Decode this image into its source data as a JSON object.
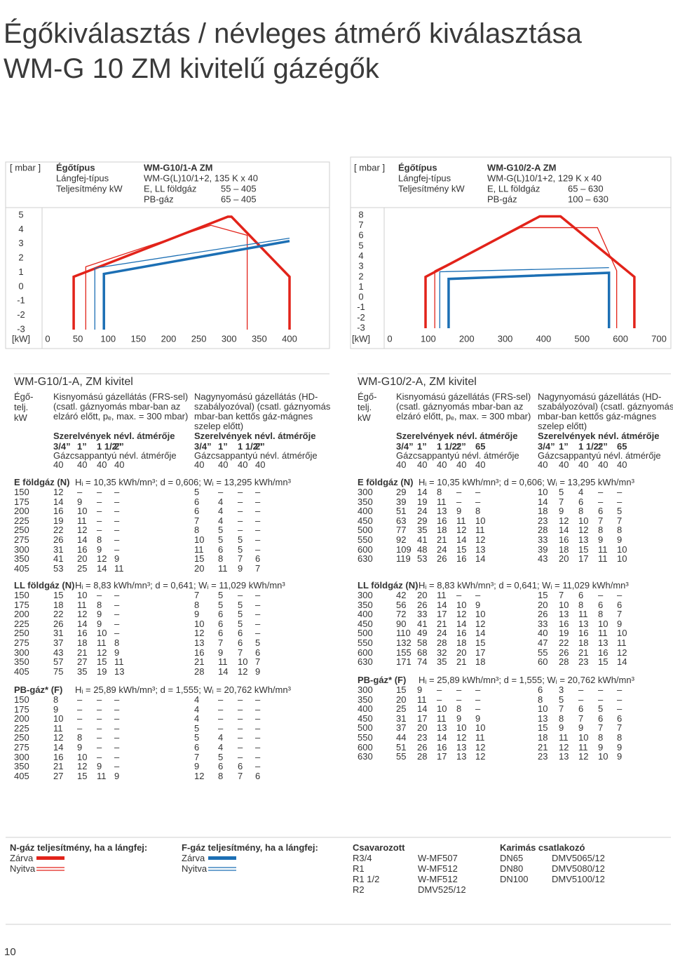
{
  "header": {
    "title_lines": [
      "Égőkiválasztás / névleges átmérő kiválasztása",
      "WM-G 10 ZM kivitelű gázégők"
    ]
  },
  "chart_data": [
    {
      "type": "line",
      "header": {
        "unit": "[ mbar ]",
        "label_lines": [
          "Égőtípus",
          "Lángfej-típus",
          "Teljesítmény kW"
        ],
        "model": "WM-G10/1-A ZM",
        "head_type": "WM-G(L)10/1+2, 135 K x 40",
        "ranges": [
          [
            "E, LL földgáz",
            "55 – 405"
          ],
          [
            "PB-gáz",
            "65 – 405"
          ]
        ]
      },
      "x_unit": "[kW]",
      "xlim": [
        0,
        400
      ],
      "xticks": [
        0,
        50,
        100,
        150,
        200,
        250,
        300,
        350,
        400
      ],
      "ylim": [
        -3,
        5
      ],
      "yticks": [
        5,
        4,
        3,
        2,
        1,
        0,
        -1,
        -2,
        -3
      ],
      "series": [
        {
          "color": "#e2231a",
          "line": "thick",
          "x": [
            43,
            43,
            298,
            304,
            400,
            400
          ],
          "values": [
            -3,
            0.7,
            4.9,
            4.9,
            0.7,
            -3
          ]
        },
        {
          "color": "#e2231a",
          "line": "thin",
          "x": [
            63,
            63,
            270,
            330,
            330
          ],
          "values": [
            -3,
            1.4,
            4.3,
            3.6,
            -3
          ]
        },
        {
          "color": "#1c6fb4",
          "line": "thin",
          "x": [
            78,
            78,
            400
          ],
          "values": [
            -3,
            1.3,
            3.4
          ]
        },
        {
          "color": "#1c6fb4",
          "line": "thick",
          "x": [
            93,
            93,
            400
          ],
          "values": [
            -3,
            0.9,
            3.2
          ]
        }
      ]
    },
    {
      "type": "line",
      "header": {
        "unit": "[ mbar ]",
        "label_lines": [
          "Égőtípus",
          "Lángfej-típus",
          "Teljesítmény kW"
        ],
        "model": "WM-G10/2-A ZM",
        "head_type": "WM-G(L)10/1+2, 129 K x 40",
        "ranges": [
          [
            "E, LL földgáz",
            "65 – 630"
          ],
          [
            "PB-gáz",
            "100 – 630"
          ]
        ]
      },
      "x_unit": "[kW]",
      "xlim": [
        0,
        700
      ],
      "xticks": [
        0,
        100,
        200,
        300,
        400,
        500,
        600,
        700
      ],
      "ylim": [
        -3,
        8
      ],
      "yticks": [
        8,
        7,
        6,
        5,
        4,
        3,
        2,
        1,
        0,
        -1,
        -2,
        -3
      ],
      "series": [
        {
          "color": "#e2231a",
          "line": "thick",
          "x": [
            93,
            93,
            390,
            444,
            636,
            636
          ],
          "values": [
            -3,
            2,
            7.9,
            7.9,
            2,
            -3
          ]
        },
        {
          "color": "#e2231a",
          "line": "thin",
          "x": [
            117,
            117,
            340,
            540,
            590,
            590
          ],
          "values": [
            -3,
            2.6,
            6.8,
            6.8,
            2.6,
            -3
          ]
        },
        {
          "color": "#1c6fb4",
          "line": "thin",
          "x": [
            130,
            130,
            570
          ],
          "values": [
            -3,
            2.5,
            2.9
          ]
        },
        {
          "color": "#1c6fb4",
          "line": "thick",
          "x": [
            153,
            153,
            570,
            570
          ],
          "values": [
            -3,
            1.8,
            2.4,
            -3
          ]
        }
      ]
    }
  ],
  "tables": [
    {
      "title": "WM-G10/1-A, ZM kivitel",
      "power_head": [
        "Égő-",
        "telj.",
        "kW"
      ],
      "groups": [
        {
          "lines": [
            "Kisnyomású gázellátás (FRS-sel)",
            "(csatl. gáznyomás mbar-ban az",
            "elzáró előtt, pₑ, max. = 300 mbar)"
          ],
          "fittings_label": "Szerelvények névl. átmérője",
          "sizes": [
            "3/4”",
            "1”",
            "1 1/2”",
            "2”"
          ],
          "valve_label": "Gázcsappantyú névl. átmérője",
          "valves": [
            40,
            40,
            40,
            40
          ]
        },
        {
          "lines": [
            "Nagynyomású gázellátás (HD-",
            "szabályozóval) (csatl. gáznyomás",
            "mbar-ban kettős gáz-mágnes",
            "szelep előtt)"
          ],
          "fittings_label": "Szerelvények névl. átmérője",
          "sizes": [
            "3/4”",
            "1”",
            "1 1/2”",
            "2”"
          ],
          "valve_label": "Gázcsappantyú névl. átmérője",
          "valves": [
            40,
            40,
            40,
            40
          ]
        }
      ],
      "sections": [
        {
          "gas": "E földgáz (N)",
          "props": "Hᵢ = 10,35 kWh/mn³;  d = 0,606;  Wᵢ = 13,295 kWh/mn³",
          "rows": [
            [
              150,
              12,
              "–",
              "–",
              "–",
              5,
              "–",
              "–",
              "–"
            ],
            [
              175,
              14,
              9,
              "–",
              "–",
              6,
              4,
              "–",
              "–"
            ],
            [
              200,
              16,
              10,
              "–",
              "–",
              6,
              4,
              "–",
              "–"
            ],
            [
              225,
              19,
              11,
              "–",
              "–",
              7,
              4,
              "–",
              "–"
            ],
            [
              250,
              22,
              12,
              "–",
              "–",
              8,
              5,
              "–",
              "–"
            ],
            [
              275,
              26,
              14,
              8,
              "–",
              10,
              5,
              5,
              "–"
            ],
            [
              300,
              31,
              16,
              9,
              "–",
              11,
              6,
              5,
              "–"
            ],
            [
              350,
              41,
              20,
              12,
              9,
              15,
              8,
              7,
              6
            ],
            [
              405,
              53,
              25,
              14,
              11,
              20,
              11,
              9,
              7
            ]
          ]
        },
        {
          "gas": "LL földgáz (N)",
          "props": "Hᵢ = 8,83 kWh/mn³;  d = 0,641;  Wᵢ = 11,029 kWh/mn³",
          "rows": [
            [
              150,
              15,
              10,
              "–",
              "–",
              7,
              5,
              "–",
              "–"
            ],
            [
              175,
              18,
              11,
              8,
              "–",
              8,
              5,
              5,
              "–"
            ],
            [
              200,
              22,
              12,
              9,
              "–",
              9,
              6,
              5,
              "–"
            ],
            [
              225,
              26,
              14,
              9,
              "–",
              10,
              6,
              5,
              "–"
            ],
            [
              250,
              31,
              16,
              10,
              "–",
              12,
              6,
              6,
              "–"
            ],
            [
              275,
              37,
              18,
              11,
              8,
              13,
              7,
              6,
              5
            ],
            [
              300,
              43,
              21,
              12,
              9,
              16,
              9,
              7,
              6
            ],
            [
              350,
              57,
              27,
              15,
              11,
              21,
              11,
              10,
              7
            ],
            [
              405,
              75,
              35,
              19,
              13,
              28,
              14,
              12,
              9
            ]
          ]
        },
        {
          "gas": "PB-gáz* (F)",
          "props": "Hᵢ = 25,89 kWh/mn³;  d = 1,555;  Wᵢ = 20,762 kWh/mn³",
          "rows": [
            [
              150,
              8,
              "–",
              "–",
              "–",
              4,
              "–",
              "–",
              "–"
            ],
            [
              175,
              9,
              "–",
              "–",
              "–",
              4,
              "–",
              "–",
              "–"
            ],
            [
              200,
              10,
              "–",
              "–",
              "–",
              4,
              "–",
              "–",
              "–"
            ],
            [
              225,
              11,
              "–",
              "–",
              "–",
              5,
              "–",
              "–",
              "–"
            ],
            [
              250,
              12,
              8,
              "–",
              "–",
              5,
              4,
              "–",
              "–"
            ],
            [
              275,
              14,
              9,
              "–",
              "–",
              6,
              4,
              "–",
              "–"
            ],
            [
              300,
              16,
              10,
              "–",
              "–",
              7,
              5,
              "–",
              "–"
            ],
            [
              350,
              21,
              12,
              9,
              "–",
              9,
              6,
              6,
              "–"
            ],
            [
              405,
              27,
              15,
              11,
              9,
              12,
              8,
              7,
              6
            ]
          ]
        }
      ]
    },
    {
      "title": "WM-G10/2-A, ZM kivitel",
      "power_head": [
        "Égő-",
        "telj.",
        "kW"
      ],
      "groups": [
        {
          "lines": [
            "Kisnyomású gázellátás (FRS-sel)",
            "(csatl. gáznyomás mbar-ban az",
            " elzáró előtt, pₑ, max. = 300 mbar)"
          ],
          "fittings_label": "Szerelvények névl. átmérője",
          "sizes": [
            "3/4”",
            "1”",
            "1 1/2”",
            "2”",
            "65"
          ],
          "valve_label": "Gázcsappantyú névl. átmérője",
          "valves": [
            40,
            40,
            40,
            40,
            40
          ]
        },
        {
          "lines": [
            "Nagynyomású gázellátás (HD-",
            "szabályozóval) (csatl. gáznyomás",
            "mbar-ban kettős gáz-mágnes",
            "szelep előtt)"
          ],
          "fittings_label": "Szerelvények névl. átmérője",
          "sizes": [
            "3/4”",
            "1”",
            "1 1/2”",
            "2”",
            "65"
          ],
          "valve_label": "Gázcsappantyú névl. átmérője",
          "valves": [
            40,
            40,
            40,
            40,
            40
          ]
        }
      ],
      "sections": [
        {
          "gas": "E földgáz (N)",
          "props": "Hᵢ = 10,35 kWh/mn³;  d = 0,606;  Wᵢ = 13,295 kWh/mn³",
          "rows": [
            [
              300,
              29,
              14,
              8,
              "–",
              "–",
              10,
              5,
              4,
              "–",
              "–"
            ],
            [
              350,
              39,
              19,
              11,
              "–",
              "–",
              14,
              7,
              6,
              "–",
              "–"
            ],
            [
              400,
              51,
              24,
              13,
              9,
              8,
              18,
              9,
              8,
              6,
              5
            ],
            [
              450,
              63,
              29,
              16,
              11,
              10,
              23,
              12,
              10,
              7,
              7
            ],
            [
              500,
              77,
              35,
              18,
              12,
              11,
              28,
              14,
              12,
              8,
              8
            ],
            [
              550,
              92,
              41,
              21,
              14,
              12,
              33,
              16,
              13,
              9,
              9
            ],
            [
              600,
              109,
              48,
              24,
              15,
              13,
              39,
              18,
              15,
              11,
              10
            ],
            [
              630,
              119,
              53,
              26,
              16,
              14,
              43,
              20,
              17,
              11,
              10
            ]
          ]
        },
        {
          "gas": "LL földgáz (N)",
          "props": "Hᵢ = 8,83 kWh/mn³;  d = 0,641;  Wᵢ = 11,029 kWh/mn³",
          "rows": [
            [
              300,
              42,
              20,
              11,
              "–",
              "–",
              15,
              7,
              6,
              "–",
              "–"
            ],
            [
              350,
              56,
              26,
              14,
              10,
              9,
              20,
              10,
              8,
              6,
              6
            ],
            [
              400,
              72,
              33,
              17,
              12,
              10,
              26,
              13,
              11,
              8,
              7
            ],
            [
              450,
              90,
              41,
              21,
              14,
              12,
              33,
              16,
              13,
              10,
              9
            ],
            [
              500,
              110,
              49,
              24,
              16,
              14,
              40,
              19,
              16,
              11,
              10
            ],
            [
              550,
              132,
              58,
              28,
              18,
              15,
              47,
              22,
              18,
              13,
              11
            ],
            [
              600,
              155,
              68,
              32,
              20,
              17,
              55,
              26,
              21,
              16,
              12
            ],
            [
              630,
              171,
              74,
              35,
              21,
              18,
              60,
              28,
              23,
              15,
              14
            ]
          ]
        },
        {
          "gas": "PB-gáz* (F)",
          "props": "Hᵢ = 25,89 kWh/mn³;  d = 1,555;  Wᵢ = 20,762 kWh/mn³",
          "rows": [
            [
              300,
              15,
              9,
              "–",
              "–",
              "–",
              6,
              3,
              "–",
              "–",
              "–"
            ],
            [
              350,
              20,
              11,
              "–",
              "–",
              "–",
              8,
              5,
              "–",
              "–",
              "–"
            ],
            [
              400,
              25,
              14,
              10,
              8,
              "–",
              10,
              7,
              6,
              5,
              "–"
            ],
            [
              450,
              31,
              17,
              11,
              9,
              9,
              13,
              8,
              7,
              6,
              6
            ],
            [
              500,
              37,
              20,
              13,
              10,
              10,
              15,
              9,
              9,
              7,
              7
            ],
            [
              550,
              44,
              23,
              14,
              12,
              11,
              18,
              11,
              10,
              8,
              8
            ],
            [
              600,
              51,
              26,
              16,
              13,
              12,
              21,
              12,
              11,
              9,
              9
            ],
            [
              630,
              55,
              28,
              17,
              13,
              12,
              23,
              13,
              12,
              10,
              9
            ]
          ]
        }
      ]
    }
  ],
  "footer": {
    "legends": [
      {
        "title": "N-gáz teljesítmény, ha a lángfej:",
        "color": "#e2231a",
        "items": [
          "Zárva",
          "Nyitva"
        ]
      },
      {
        "title": "F-gáz teljesítmény, ha a lángfej:",
        "color": "#1c6fb4",
        "items": [
          "Zárva",
          "Nyitva"
        ]
      }
    ],
    "lists": [
      {
        "title": "Csavarozott",
        "rows": [
          [
            "R3/4",
            "W-MF507"
          ],
          [
            "R1",
            "W-MF512"
          ],
          [
            "R1 1/2",
            "W-MF512"
          ],
          [
            "R2",
            "DMV525/12"
          ]
        ]
      },
      {
        "title": "Karimás csatlakozó",
        "rows": [
          [
            "DN65",
            "DMV5065/12"
          ],
          [
            "DN80",
            "DMV5080/12"
          ],
          [
            "DN100",
            "DMV5100/12"
          ]
        ]
      }
    ],
    "page_number": "10"
  }
}
